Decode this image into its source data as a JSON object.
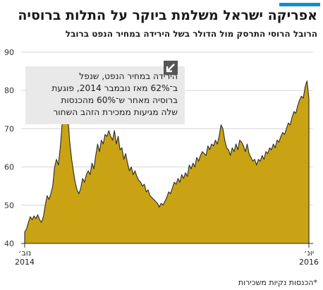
{
  "colors": {
    "accent": "#0d8fd6",
    "area": "#c9a313",
    "grid": "#d6d6d6",
    "annotation_bg": "#e9e9e9"
  },
  "header": {
    "title": "אפריקה ישראל משלמת ביוקר על התלות ברוסיה",
    "subtitle": "הרובל הרוסי התרסק מול הדולר בשל הירידה במחיר הנפט ברובל"
  },
  "annotation": {
    "line1": "הירידה במחיר הנפט, שנפל",
    "line2": "ב־62% מאז נובמבר 2014, פוגעת",
    "line3": "ברוסיה מאחר ש־60% מהכנסות",
    "line4": "שלה מגיעות ממכירת הזהב השחור",
    "icon": "arrow-down-left-icon"
  },
  "footer": {
    "source": "*הכנסות נקיות משכירות"
  },
  "chart_data": {
    "type": "area",
    "title": "הרובל הרוסי התרסק מול הדולר בשל הירידה במחיר הנפט ברובל",
    "xlabel": "",
    "ylabel": "",
    "ylim": [
      40,
      90
    ],
    "yticks": [
      "40",
      "50",
      "60",
      "70",
      "80",
      "90"
    ],
    "xticks": [
      {
        "month": "נוב׳",
        "year": "2014"
      },
      {
        "month": "יונ׳",
        "year": "2016"
      }
    ],
    "grid": true,
    "x_range": [
      "2014-11",
      "2016-06"
    ],
    "series": [
      {
        "values": [
          43,
          43.8,
          45.5,
          47,
          46.2,
          47.2,
          46.5,
          47.5,
          46.2,
          45.5,
          47,
          50,
          52.5,
          51.5,
          53,
          55,
          60,
          62,
          60.5,
          65,
          71,
          76,
          78,
          74,
          67,
          62.5,
          59,
          56,
          54,
          53,
          54.5,
          57,
          56,
          58,
          59,
          58,
          61,
          59.5,
          63,
          66,
          64,
          67,
          66,
          68.5,
          68,
          69.5,
          68,
          67,
          69.5,
          66,
          68,
          64.5,
          65,
          62,
          63.5,
          61,
          59,
          60,
          58,
          59,
          57.5,
          56.5,
          56,
          55,
          55.5,
          53.5,
          54,
          52.5,
          52,
          51.5,
          51,
          50.5,
          49.5,
          50.5,
          50,
          51,
          52,
          53.5,
          53,
          54.5,
          56,
          55.5,
          57,
          56,
          58,
          57,
          58.5,
          57.5,
          60.5,
          59.5,
          61,
          60,
          62.5,
          61.5,
          63,
          64,
          63.5,
          63,
          65.5,
          64.5,
          66,
          65.5,
          67,
          66,
          68,
          71,
          70,
          67,
          65,
          64.5,
          63,
          65,
          64,
          66,
          64.5,
          67,
          66.5,
          65.5,
          64,
          66,
          63.5,
          62.5,
          61.5,
          62,
          60.5,
          62,
          61.5,
          63,
          62,
          64,
          63.5,
          65,
          64.5,
          66,
          65,
          67,
          66.5,
          68,
          69,
          68.5,
          70,
          71.5,
          71,
          73,
          74.5,
          74,
          76,
          77.5,
          78.5,
          78,
          81,
          82.5,
          78
        ]
      }
    ]
  }
}
